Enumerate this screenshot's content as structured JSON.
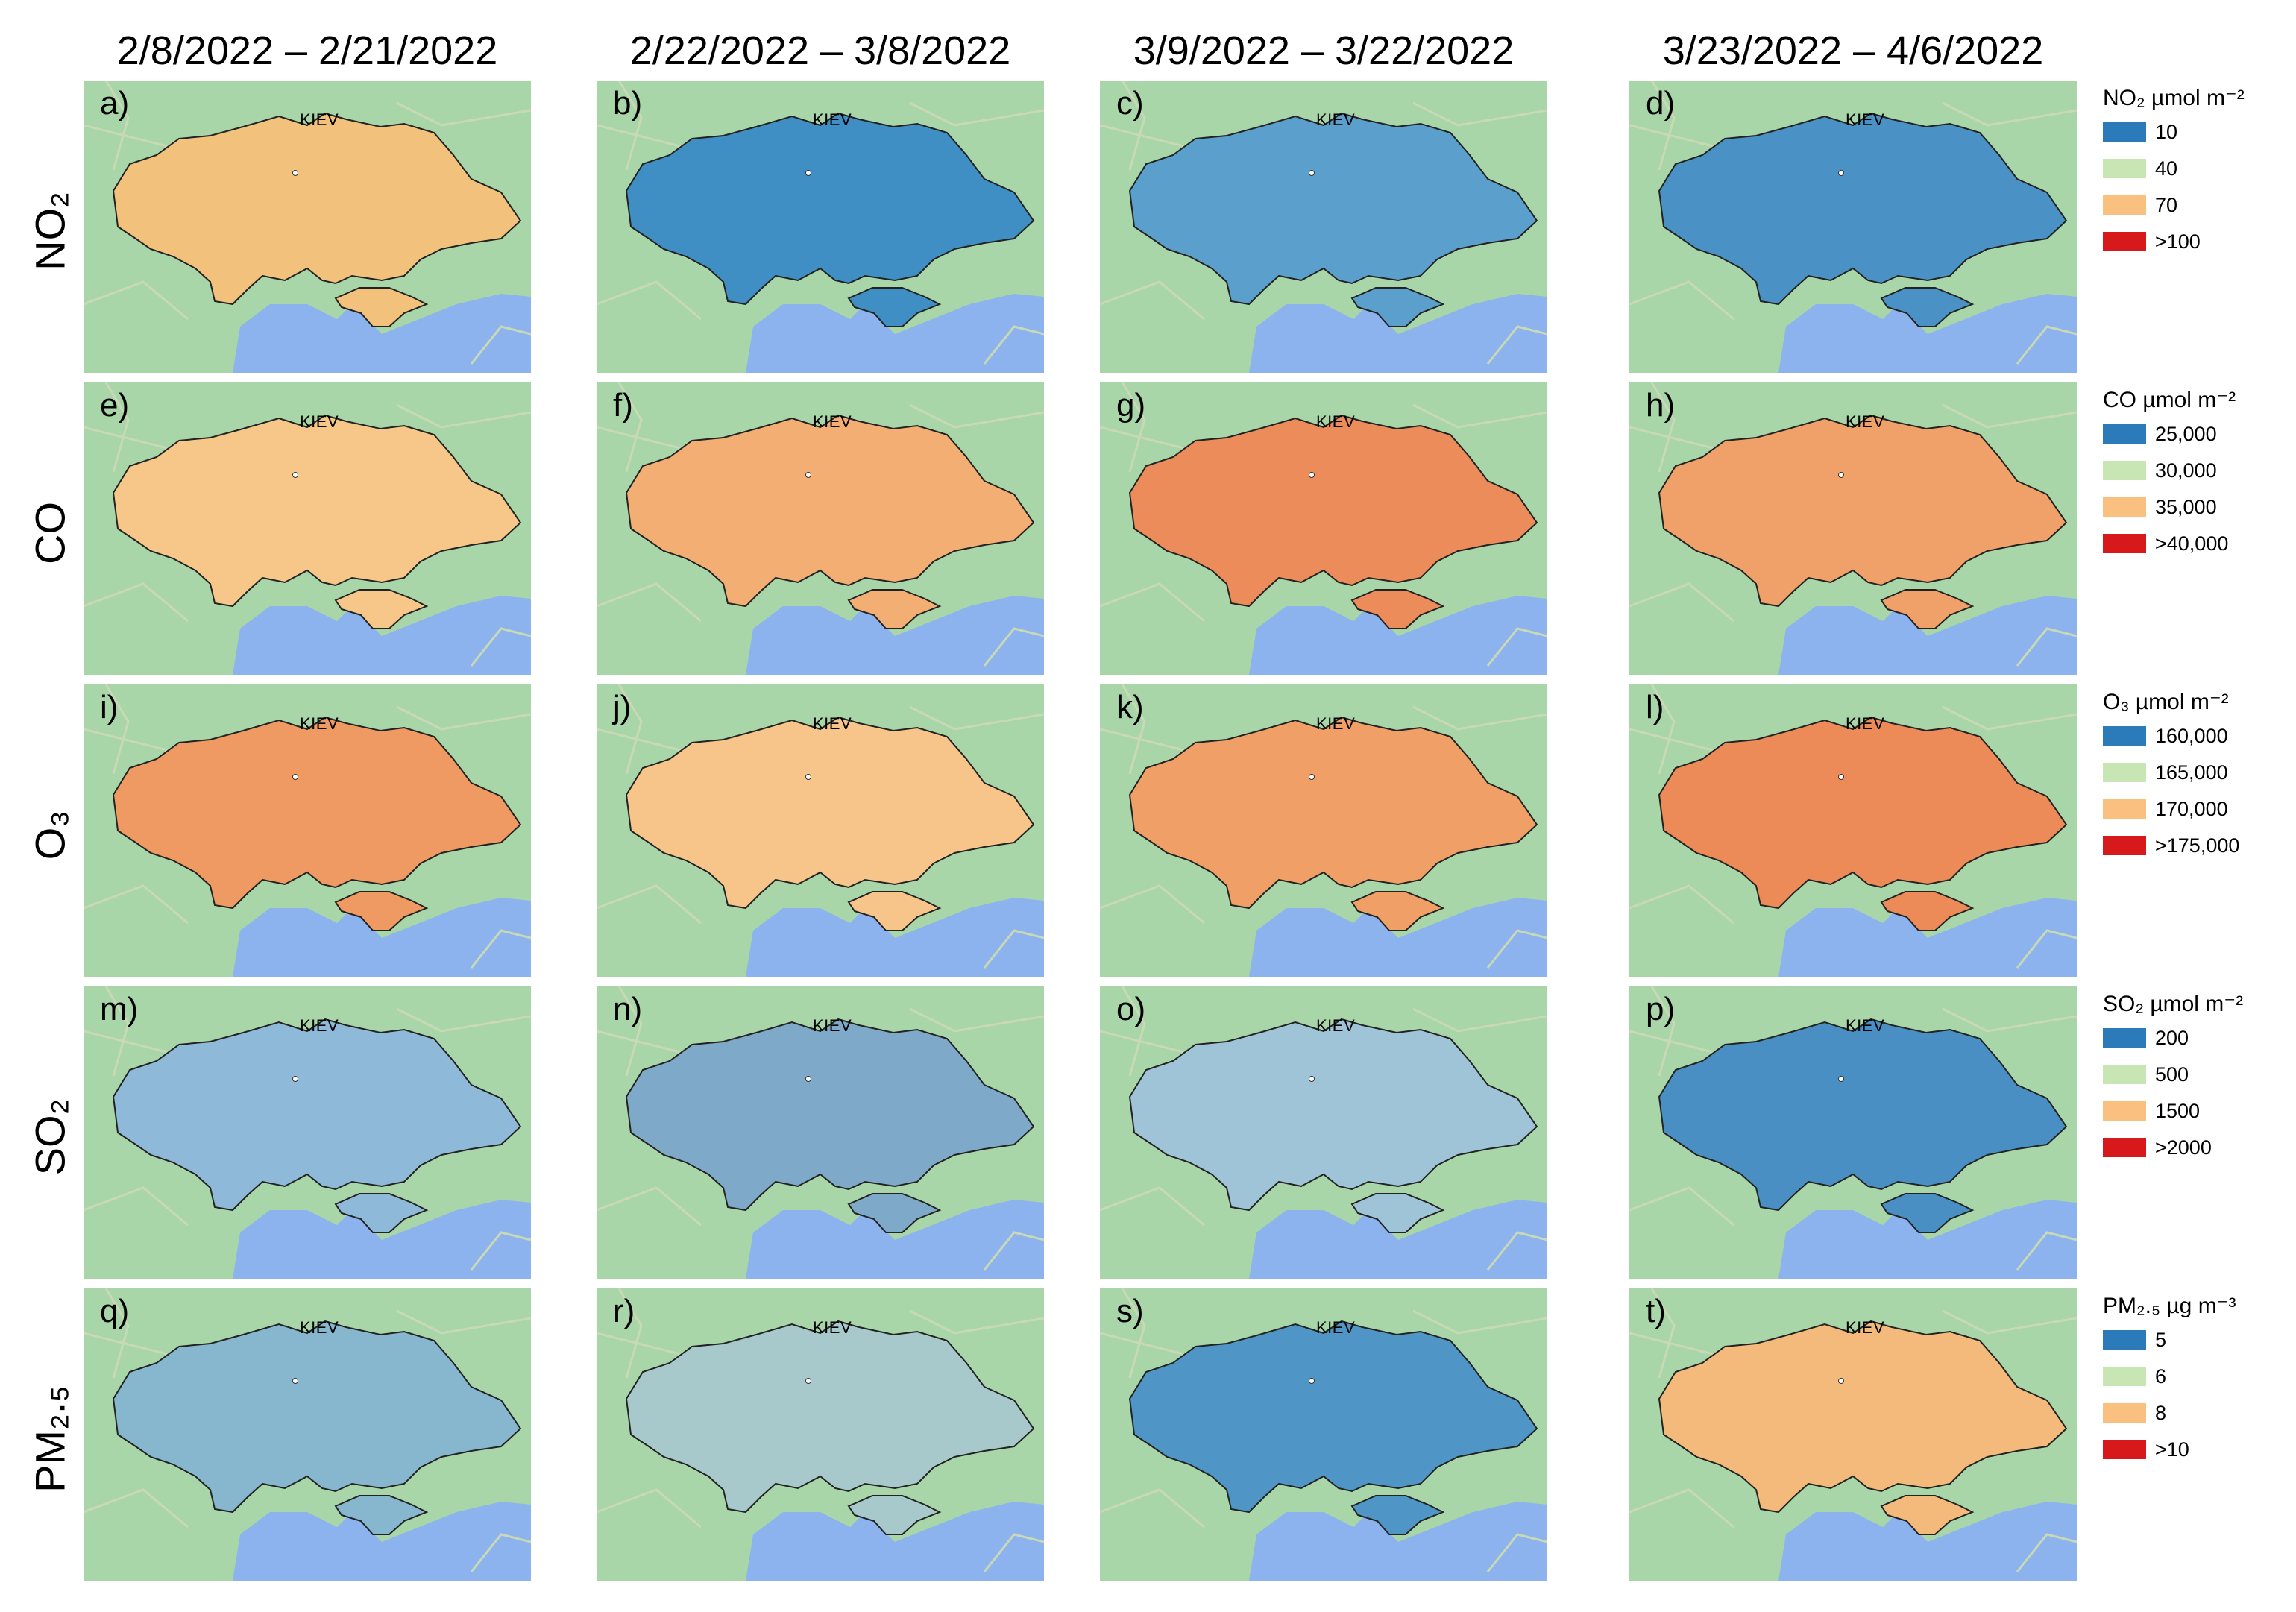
{
  "columns": [
    "2/8/2022 – 2/21/2022",
    "2/22/2022 – 3/8/2022",
    "3/9/2022 – 3/22/2022",
    "3/23/2022 – 4/6/2022"
  ],
  "rows": [
    {
      "label": "NO₂",
      "panels": [
        {
          "letter": "a)",
          "city": "KIEV",
          "fill": "#f2c27c"
        },
        {
          "letter": "b)",
          "city": "KIEV",
          "fill": "#3f8ec4"
        },
        {
          "letter": "c)",
          "city": "KIEV",
          "fill": "#5b9fcd"
        },
        {
          "letter": "d)",
          "city": "KIEV",
          "fill": "#4a92c6"
        }
      ],
      "legend": {
        "title": "NO₂ µmol m⁻²",
        "items": [
          {
            "label": "10",
            "color": "#2b7bba"
          },
          {
            "label": "40",
            "color": "#c7e6b3"
          },
          {
            "label": "70",
            "color": "#f9c07f"
          },
          {
            "label": ">100",
            "color": "#d7191c"
          }
        ]
      }
    },
    {
      "label": "CO",
      "panels": [
        {
          "letter": "e)",
          "city": "KIEV",
          "fill": "#f6c788"
        },
        {
          "letter": "f)",
          "city": "KIEV",
          "fill": "#f3ae73"
        },
        {
          "letter": "g)",
          "city": "KIEV",
          "fill": "#ec8c5b"
        },
        {
          "letter": "h)",
          "city": "KIEV",
          "fill": "#f0a069"
        }
      ],
      "legend": {
        "title": "CO µmol m⁻²",
        "items": [
          {
            "label": "25,000",
            "color": "#2b7bba"
          },
          {
            "label": "30,000",
            "color": "#c7e6b3"
          },
          {
            "label": "35,000",
            "color": "#f9c07f"
          },
          {
            "label": ">40,000",
            "color": "#d7191c"
          }
        ]
      }
    },
    {
      "label": "O₃",
      "panels": [
        {
          "letter": "i)",
          "city": "KIEV",
          "fill": "#ef9a62"
        },
        {
          "letter": "j)",
          "city": "KIEV",
          "fill": "#f7c58a"
        },
        {
          "letter": "k)",
          "city": "KIEV",
          "fill": "#f0a067"
        },
        {
          "letter": "l)",
          "city": "KIEV",
          "fill": "#ec8a58"
        }
      ],
      "legend": {
        "title": "O₃ µmol m⁻²",
        "items": [
          {
            "label": "160,000",
            "color": "#2b7bba"
          },
          {
            "label": "165,000",
            "color": "#c7e6b3"
          },
          {
            "label": "170,000",
            "color": "#f9c07f"
          },
          {
            "label": ">175,000",
            "color": "#d7191c"
          }
        ]
      }
    },
    {
      "label": "SO₂",
      "panels": [
        {
          "letter": "m)",
          "city": "KIEV",
          "fill": "#8fb9d8"
        },
        {
          "letter": "n)",
          "city": "KIEV",
          "fill": "#7fa9c9"
        },
        {
          "letter": "o)",
          "city": "KIEV",
          "fill": "#9fc4d8"
        },
        {
          "letter": "p)",
          "city": "KIEV",
          "fill": "#4a8fc3"
        }
      ],
      "legend": {
        "title": "SO₂ µmol m⁻²",
        "items": [
          {
            "label": "200",
            "color": "#2b7bba"
          },
          {
            "label": "500",
            "color": "#c7e6b3"
          },
          {
            "label": "1500",
            "color": "#f9c07f"
          },
          {
            "label": ">2000",
            "color": "#d7191c"
          }
        ]
      }
    },
    {
      "label": "PM₂.₅",
      "panels": [
        {
          "letter": "q)",
          "city": "KIEV",
          "fill": "#86b7cf"
        },
        {
          "letter": "r)",
          "city": "KIEV",
          "fill": "#a7c9cc"
        },
        {
          "letter": "s)",
          "city": "KIEV",
          "fill": "#4f95c6"
        },
        {
          "letter": "t)",
          "city": "KIEV",
          "fill": "#f3ba7b"
        }
      ],
      "legend": {
        "title": "PM₂.₅ µg m⁻³",
        "items": [
          {
            "label": "5",
            "color": "#2b7bba"
          },
          {
            "label": "6",
            "color": "#c7e6b3"
          },
          {
            "label": "8",
            "color": "#f9c07f"
          },
          {
            "label": ">10",
            "color": "#d7191c"
          }
        ]
      }
    }
  ],
  "colors": {
    "land": "#a9d6a8",
    "sea": "#8cb3ee",
    "outline": "#222222"
  }
}
